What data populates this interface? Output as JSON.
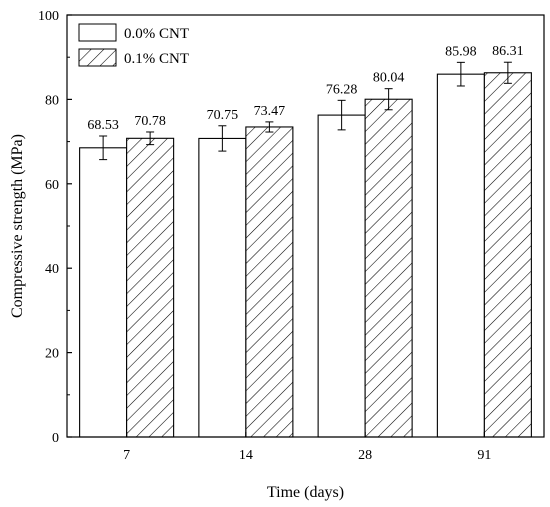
{
  "chart_data": {
    "type": "bar",
    "xlabel": "Time (days)",
    "ylabel": "Compressive strength (MPa)",
    "ylim": [
      0,
      100
    ],
    "yticks": [
      0,
      20,
      40,
      60,
      80,
      100
    ],
    "categories": [
      "7",
      "14",
      "28",
      "91"
    ],
    "series": [
      {
        "name": "0.0% CNT",
        "fill": "plain",
        "values": [
          68.53,
          70.75,
          76.28,
          85.98
        ],
        "labels": [
          "68.53",
          "70.75",
          "76.28",
          "85.98"
        ],
        "errors": [
          2.8,
          3.0,
          3.5,
          2.8
        ]
      },
      {
        "name": "0.1% CNT",
        "fill": "hatched",
        "values": [
          70.78,
          73.47,
          80.04,
          86.31
        ],
        "labels": [
          "70.78",
          "73.47",
          "80.04",
          "86.31"
        ],
        "errors": [
          1.5,
          1.2,
          2.5,
          2.5
        ]
      }
    ],
    "legend_position": "top-left",
    "grid": false,
    "colors": {
      "bar_edge": "#000000",
      "bar_fill": "#ffffff",
      "hatch": "#000000"
    }
  }
}
